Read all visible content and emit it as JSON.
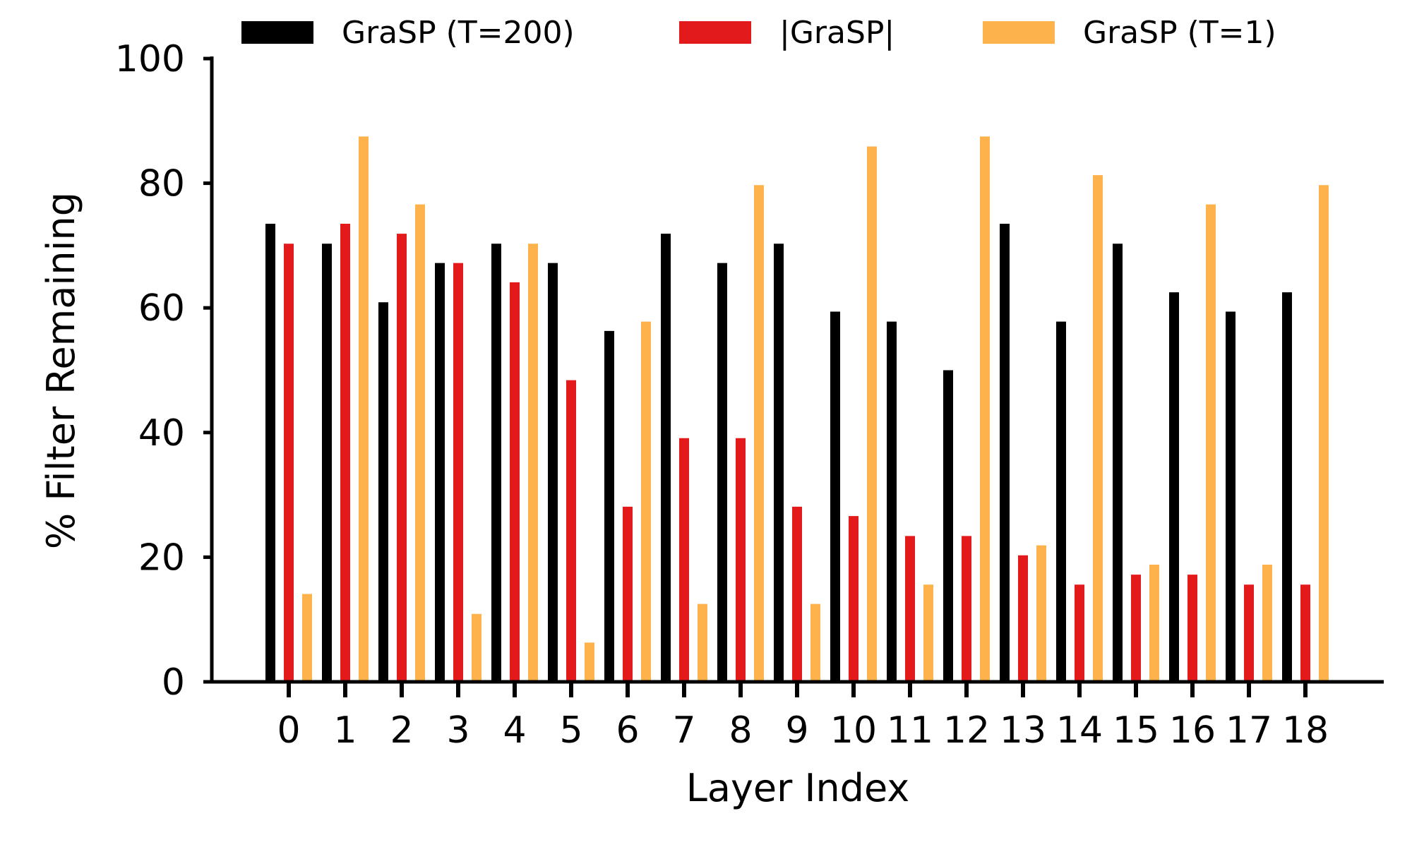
{
  "chart_data": {
    "type": "bar",
    "title": "",
    "xlabel": "Layer Index",
    "ylabel": "% Filter Remaining",
    "ylim": [
      0,
      100
    ],
    "yticks": [
      0,
      20,
      40,
      60,
      80,
      100
    ],
    "grid": false,
    "legend_position": "top",
    "categories": [
      "0",
      "1",
      "2",
      "3",
      "4",
      "5",
      "6",
      "7",
      "8",
      "9",
      "10",
      "11",
      "12",
      "13",
      "14",
      "15",
      "16",
      "17",
      "18"
    ],
    "series": [
      {
        "name": "GraSP (T=200)",
        "color": "#000000",
        "values": [
          73.5,
          70.3,
          60.9,
          67.2,
          70.3,
          67.2,
          56.3,
          71.9,
          67.2,
          70.3,
          59.4,
          57.8,
          50.0,
          73.5,
          57.8,
          70.3,
          62.5,
          59.4,
          62.5
        ]
      },
      {
        "name": "|GraSP|",
        "color": "#e31a1c",
        "values": [
          70.3,
          73.5,
          71.9,
          67.2,
          64.1,
          48.4,
          28.1,
          39.1,
          39.1,
          28.1,
          26.6,
          23.4,
          23.4,
          20.3,
          15.6,
          17.2,
          17.2,
          15.6,
          15.6
        ]
      },
      {
        "name": "GraSP (T=1)",
        "color": "#feb24c",
        "values": [
          14.1,
          87.5,
          76.6,
          10.9,
          70.3,
          6.3,
          57.8,
          12.5,
          79.7,
          12.5,
          85.9,
          15.6,
          87.5,
          21.9,
          81.3,
          18.8,
          76.6,
          18.8,
          79.7
        ]
      }
    ]
  }
}
